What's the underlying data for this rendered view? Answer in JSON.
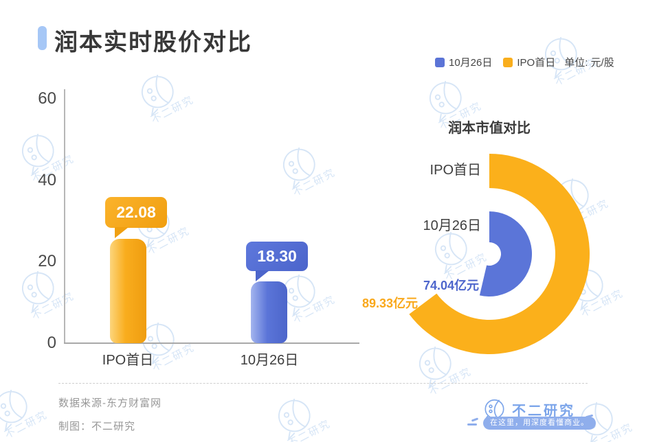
{
  "header": {
    "title": "润本实时股价对比"
  },
  "legend": {
    "items": [
      {
        "label": "10月26日",
        "color": "#5B74D6"
      },
      {
        "label": "IPO首日",
        "color": "#F9AE1D"
      }
    ],
    "unit_label": "单位: 元/股"
  },
  "chart_data": [
    {
      "type": "bar",
      "title": "润本实时股价对比",
      "unit": "元/股",
      "categories": [
        "IPO首日",
        "10月26日"
      ],
      "values": [
        22.08,
        18.3
      ],
      "value_labels": [
        "22.08",
        "18.30"
      ],
      "colors": [
        "#F9AC1E",
        "#5B75D8"
      ],
      "xlabel": "",
      "ylabel": "",
      "ylim": [
        0,
        60
      ],
      "yticks": [
        0,
        20,
        40,
        60
      ],
      "grid": false,
      "legend_position": "top-right"
    },
    {
      "type": "radial-bar",
      "title": "润本市值对比",
      "categories": [
        "IPO首日",
        "10月26日"
      ],
      "values": [
        89.33,
        74.04
      ],
      "unit": "亿元",
      "value_labels": [
        "89.33亿元",
        "74.04亿元"
      ],
      "colors": [
        "#FBB01B",
        "#5B75D8"
      ],
      "start_angle_deg": 0,
      "full_circle_value": 138
    }
  ],
  "footer": {
    "source": "数据来源-东方财富网",
    "credit": "制图：不二研究",
    "brand": {
      "name": "不二研究",
      "tagline": "在这里，用深度看懂商业。"
    }
  },
  "watermark": {
    "text": "不二研究"
  }
}
